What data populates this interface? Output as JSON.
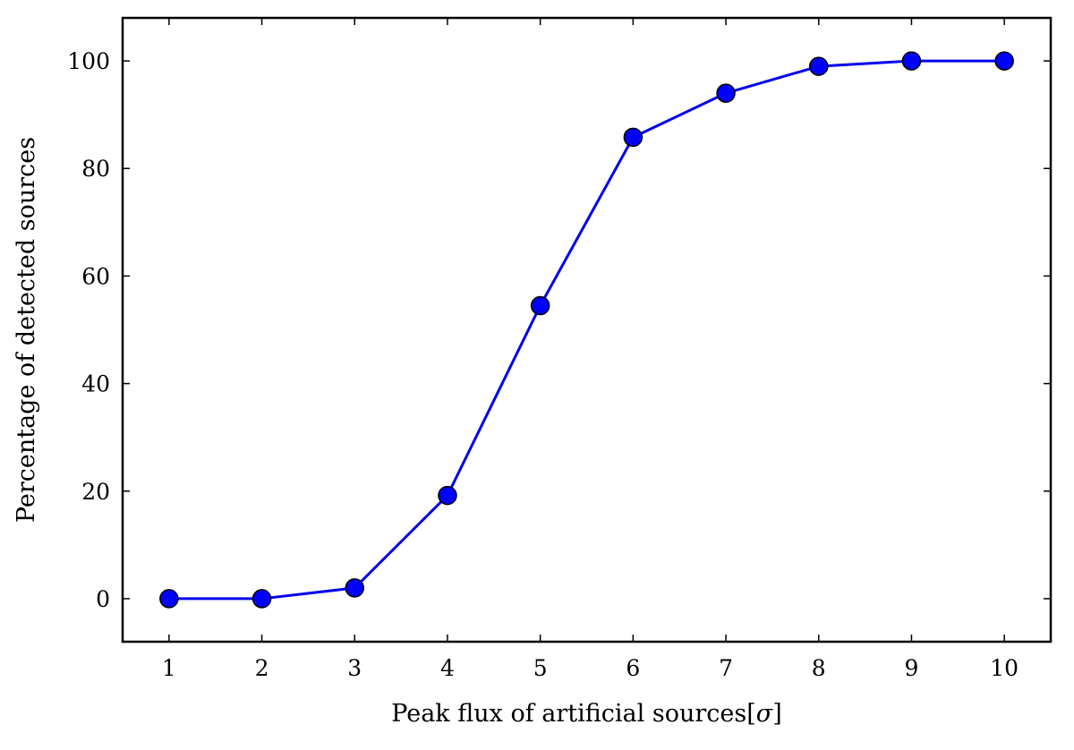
{
  "chart_data": {
    "type": "line",
    "title": "",
    "xlabel_main": "Peak flux of artificial sources[",
    "xlabel_symbol": "σ",
    "xlabel_close": "]",
    "ylabel": "Percentage of detected sources",
    "xlim": [
      0.5,
      10.5
    ],
    "ylim": [
      -8,
      108
    ],
    "xticks": [
      1,
      2,
      3,
      4,
      5,
      6,
      7,
      8,
      9,
      10
    ],
    "yticks": [
      0,
      20,
      40,
      60,
      80,
      100
    ],
    "grid": false,
    "line_color": "#0000ee",
    "marker_color": "#0000ff",
    "series": [
      {
        "x": [
          1,
          2,
          3,
          4,
          5,
          6,
          7,
          8,
          9,
          10
        ],
        "y": [
          0,
          0,
          2,
          19.2,
          54.5,
          85.8,
          94,
          99,
          100,
          100
        ]
      }
    ]
  }
}
